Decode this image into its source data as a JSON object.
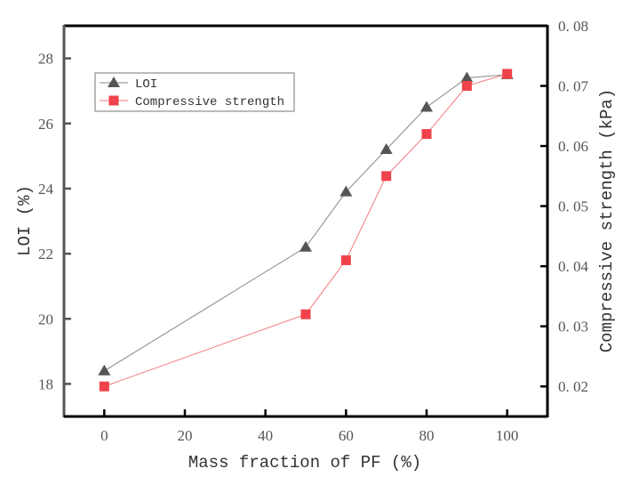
{
  "chart_data": {
    "type": "line",
    "title": "",
    "xlabel": "Mass fraction of PF (%)",
    "ylabel_left": "LOI (%)",
    "ylabel_right": "Compressive strength (kPa)",
    "xlim": [
      -10,
      110
    ],
    "ylim_left": [
      17,
      29
    ],
    "ylim_right": [
      0.015,
      0.08
    ],
    "x_ticks": [
      0,
      20,
      40,
      60,
      80,
      100
    ],
    "y_ticks_left": [
      18,
      20,
      22,
      24,
      26,
      28
    ],
    "y_ticks_right": [
      "0.02",
      "0.03",
      "0.04",
      "0.05",
      "0.06",
      "0.07",
      "0.08"
    ],
    "x": [
      0,
      50,
      60,
      70,
      80,
      90,
      100
    ],
    "series": [
      {
        "name": "LOI",
        "axis": "left",
        "marker": "triangle",
        "color": "#555555",
        "line_color": "#888888",
        "values": [
          18.4,
          22.2,
          23.9,
          25.2,
          26.5,
          27.4,
          27.5
        ]
      },
      {
        "name": "Compressive strength",
        "axis": "right",
        "marker": "square",
        "color": "#f0424a",
        "line_color": "#f27a80",
        "values": [
          0.02,
          0.032,
          0.041,
          0.055,
          0.062,
          0.07,
          0.072
        ]
      }
    ],
    "legend": "top-left",
    "grid": false
  }
}
